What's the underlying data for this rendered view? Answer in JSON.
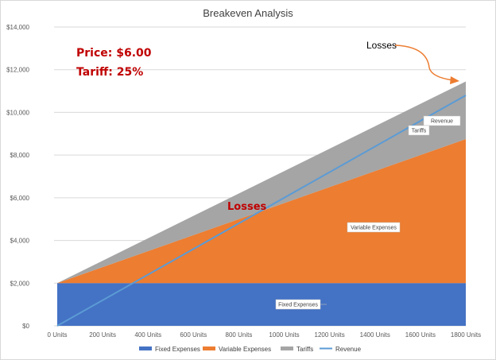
{
  "chart_data": {
    "type": "area",
    "title": "Breakeven Analysis",
    "x_unit_suffix": " Units",
    "x": [
      0,
      200,
      400,
      600,
      800,
      1000,
      1200,
      1400,
      1600,
      1800
    ],
    "x_tick_labels": [
      "0 Units",
      "200 Units",
      "400 Units",
      "600 Units",
      "800 Units",
      "1000 Units",
      "1200 Units",
      "1400 Units",
      "1600 Units",
      "1800 Units"
    ],
    "y_tick_labels": [
      "$0",
      "$2,000",
      "$4,000",
      "$6,000",
      "$8,000",
      "$10,000",
      "$12,000",
      "$14,000"
    ],
    "ylim": [
      0,
      14000
    ],
    "xlim": [
      0,
      1800
    ],
    "grid": true,
    "legend_position": "bottom",
    "series": [
      {
        "name": "Fixed Expenses",
        "type": "area",
        "color": "#4472c4",
        "x": [
          0,
          1800
        ],
        "values": [
          2000,
          2000
        ]
      },
      {
        "name": "Variable Expenses",
        "type": "area",
        "color": "#ed7d31",
        "x": [
          0,
          1800
        ],
        "values": [
          0,
          6750
        ]
      },
      {
        "name": "Tariffs",
        "type": "area",
        "color": "#a5a5a5",
        "x": [
          0,
          1800
        ],
        "values": [
          0,
          2700
        ]
      },
      {
        "name": "Revenue",
        "type": "line",
        "color": "#5b9bd5",
        "x": [
          0,
          1800
        ],
        "values": [
          0,
          10800
        ]
      }
    ],
    "annotations": {
      "price": "Price: $6.00",
      "tariff": "Tariff: 25%",
      "losses_mid": "Losses",
      "losses_top": "Losses",
      "revenue_label": "Revenue",
      "tariffs_label": "Tariffs",
      "variable_label": "Variable Expenses",
      "fixed_label": "Fixed Expenses"
    },
    "colors": {
      "arrow": "#ed7d31",
      "annotation_red": "#c00000",
      "gridline": "#d9d9d9",
      "border": "#d9d9d9"
    }
  }
}
